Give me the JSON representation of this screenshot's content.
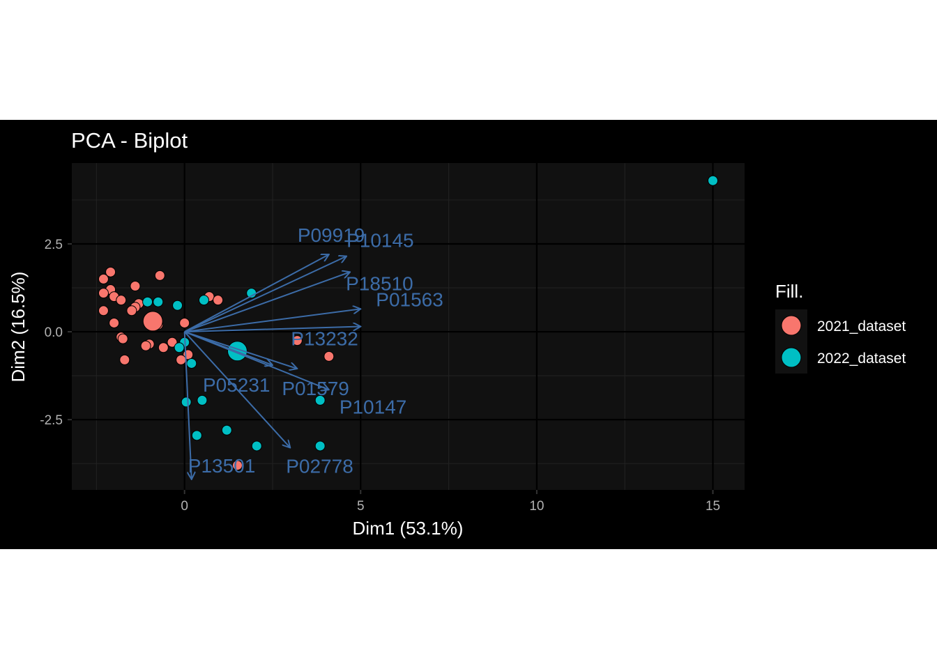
{
  "chart_data": {
    "type": "scatter",
    "title": "PCA - Biplot",
    "xlabel": "Dim1 (53.1%)",
    "ylabel": "Dim2 (16.5%)",
    "xlim": [
      -3.2,
      15.9
    ],
    "ylim": [
      -4.5,
      4.8
    ],
    "x_ticks": [
      0,
      5,
      10,
      15
    ],
    "x_tick_labels": [
      "0",
      "5",
      "10",
      "15"
    ],
    "y_ticks": [
      -2.5,
      0,
      2.5
    ],
    "y_tick_labels": [
      "-2.5",
      "0.0",
      "2.5"
    ],
    "grid": true,
    "theme": "dark",
    "colors": {
      "background": "#000000",
      "panel": "#111111",
      "grid_major": "#000000",
      "grid_minor": "#202020",
      "arrow": "#3c6ca8",
      "point_outline": "#000000"
    },
    "legend": {
      "title": "Fill.",
      "position": "right",
      "entries": [
        {
          "label": "2021_dataset",
          "color": "#F8766D"
        },
        {
          "label": "2022_dataset",
          "color": "#00BFC4"
        }
      ]
    },
    "series": [
      {
        "name": "2021_dataset",
        "color": "#F8766D",
        "centroid": [
          -0.9,
          0.3
        ],
        "points": [
          [
            -2.1,
            1.7
          ],
          [
            -2.3,
            1.5
          ],
          [
            -0.7,
            1.6
          ],
          [
            -2.1,
            1.2
          ],
          [
            -1.4,
            1.3
          ],
          [
            -2.3,
            1.1
          ],
          [
            -2.0,
            1.0
          ],
          [
            -1.8,
            0.9
          ],
          [
            -1.3,
            0.8
          ],
          [
            -1.4,
            0.7
          ],
          [
            -1.5,
            0.6
          ],
          [
            -2.3,
            0.6
          ],
          [
            -2.0,
            0.25
          ],
          [
            -1.8,
            -0.15
          ],
          [
            -1.75,
            -0.2
          ],
          [
            -1.0,
            -0.35
          ],
          [
            -1.1,
            -0.4
          ],
          [
            -0.6,
            -0.45
          ],
          [
            -0.35,
            -0.3
          ],
          [
            -1.7,
            -0.8
          ],
          [
            0.0,
            0.25
          ],
          [
            0.1,
            -0.65
          ],
          [
            -0.1,
            -0.8
          ],
          [
            0.7,
            1.0
          ],
          [
            0.95,
            0.9
          ],
          [
            3.2,
            -0.25
          ],
          [
            4.1,
            -0.7
          ],
          [
            1.5,
            -3.8
          ],
          [
            -0.75,
            0.2
          ]
        ]
      },
      {
        "name": "2022_dataset",
        "color": "#00BFC4",
        "centroid": [
          1.5,
          -0.55
        ],
        "points": [
          [
            15.0,
            4.3
          ],
          [
            1.9,
            1.1
          ],
          [
            -1.05,
            0.85
          ],
          [
            -0.75,
            0.85
          ],
          [
            -0.2,
            0.75
          ],
          [
            0.55,
            0.9
          ],
          [
            0.0,
            -0.3
          ],
          [
            -0.15,
            -0.45
          ],
          [
            0.2,
            -0.9
          ],
          [
            0.05,
            -2.0
          ],
          [
            0.5,
            -1.95
          ],
          [
            1.2,
            -2.8
          ],
          [
            0.35,
            -2.95
          ],
          [
            2.05,
            -3.25
          ],
          [
            3.85,
            -3.25
          ],
          [
            3.85,
            -1.95
          ]
        ]
      }
    ],
    "variables": [
      {
        "name": "P09919",
        "x": 4.1,
        "y": 2.2
      },
      {
        "name": "P10145",
        "x": 4.6,
        "y": 2.15
      },
      {
        "name": "P18510",
        "x": 4.7,
        "y": 1.7
      },
      {
        "name": "P01563",
        "x": 5.0,
        "y": 0.65
      },
      {
        "name": "P13232",
        "x": 5.0,
        "y": 0.15
      },
      {
        "name": "P05231",
        "x": 2.5,
        "y": -0.95
      },
      {
        "name": "P01579",
        "x": 3.2,
        "y": -1.05
      },
      {
        "name": "P10147",
        "x": 4.1,
        "y": -1.65
      },
      {
        "name": "P02778",
        "x": 3.0,
        "y": -3.3
      },
      {
        "name": "P13501",
        "x": 0.2,
        "y": -4.2
      }
    ]
  }
}
